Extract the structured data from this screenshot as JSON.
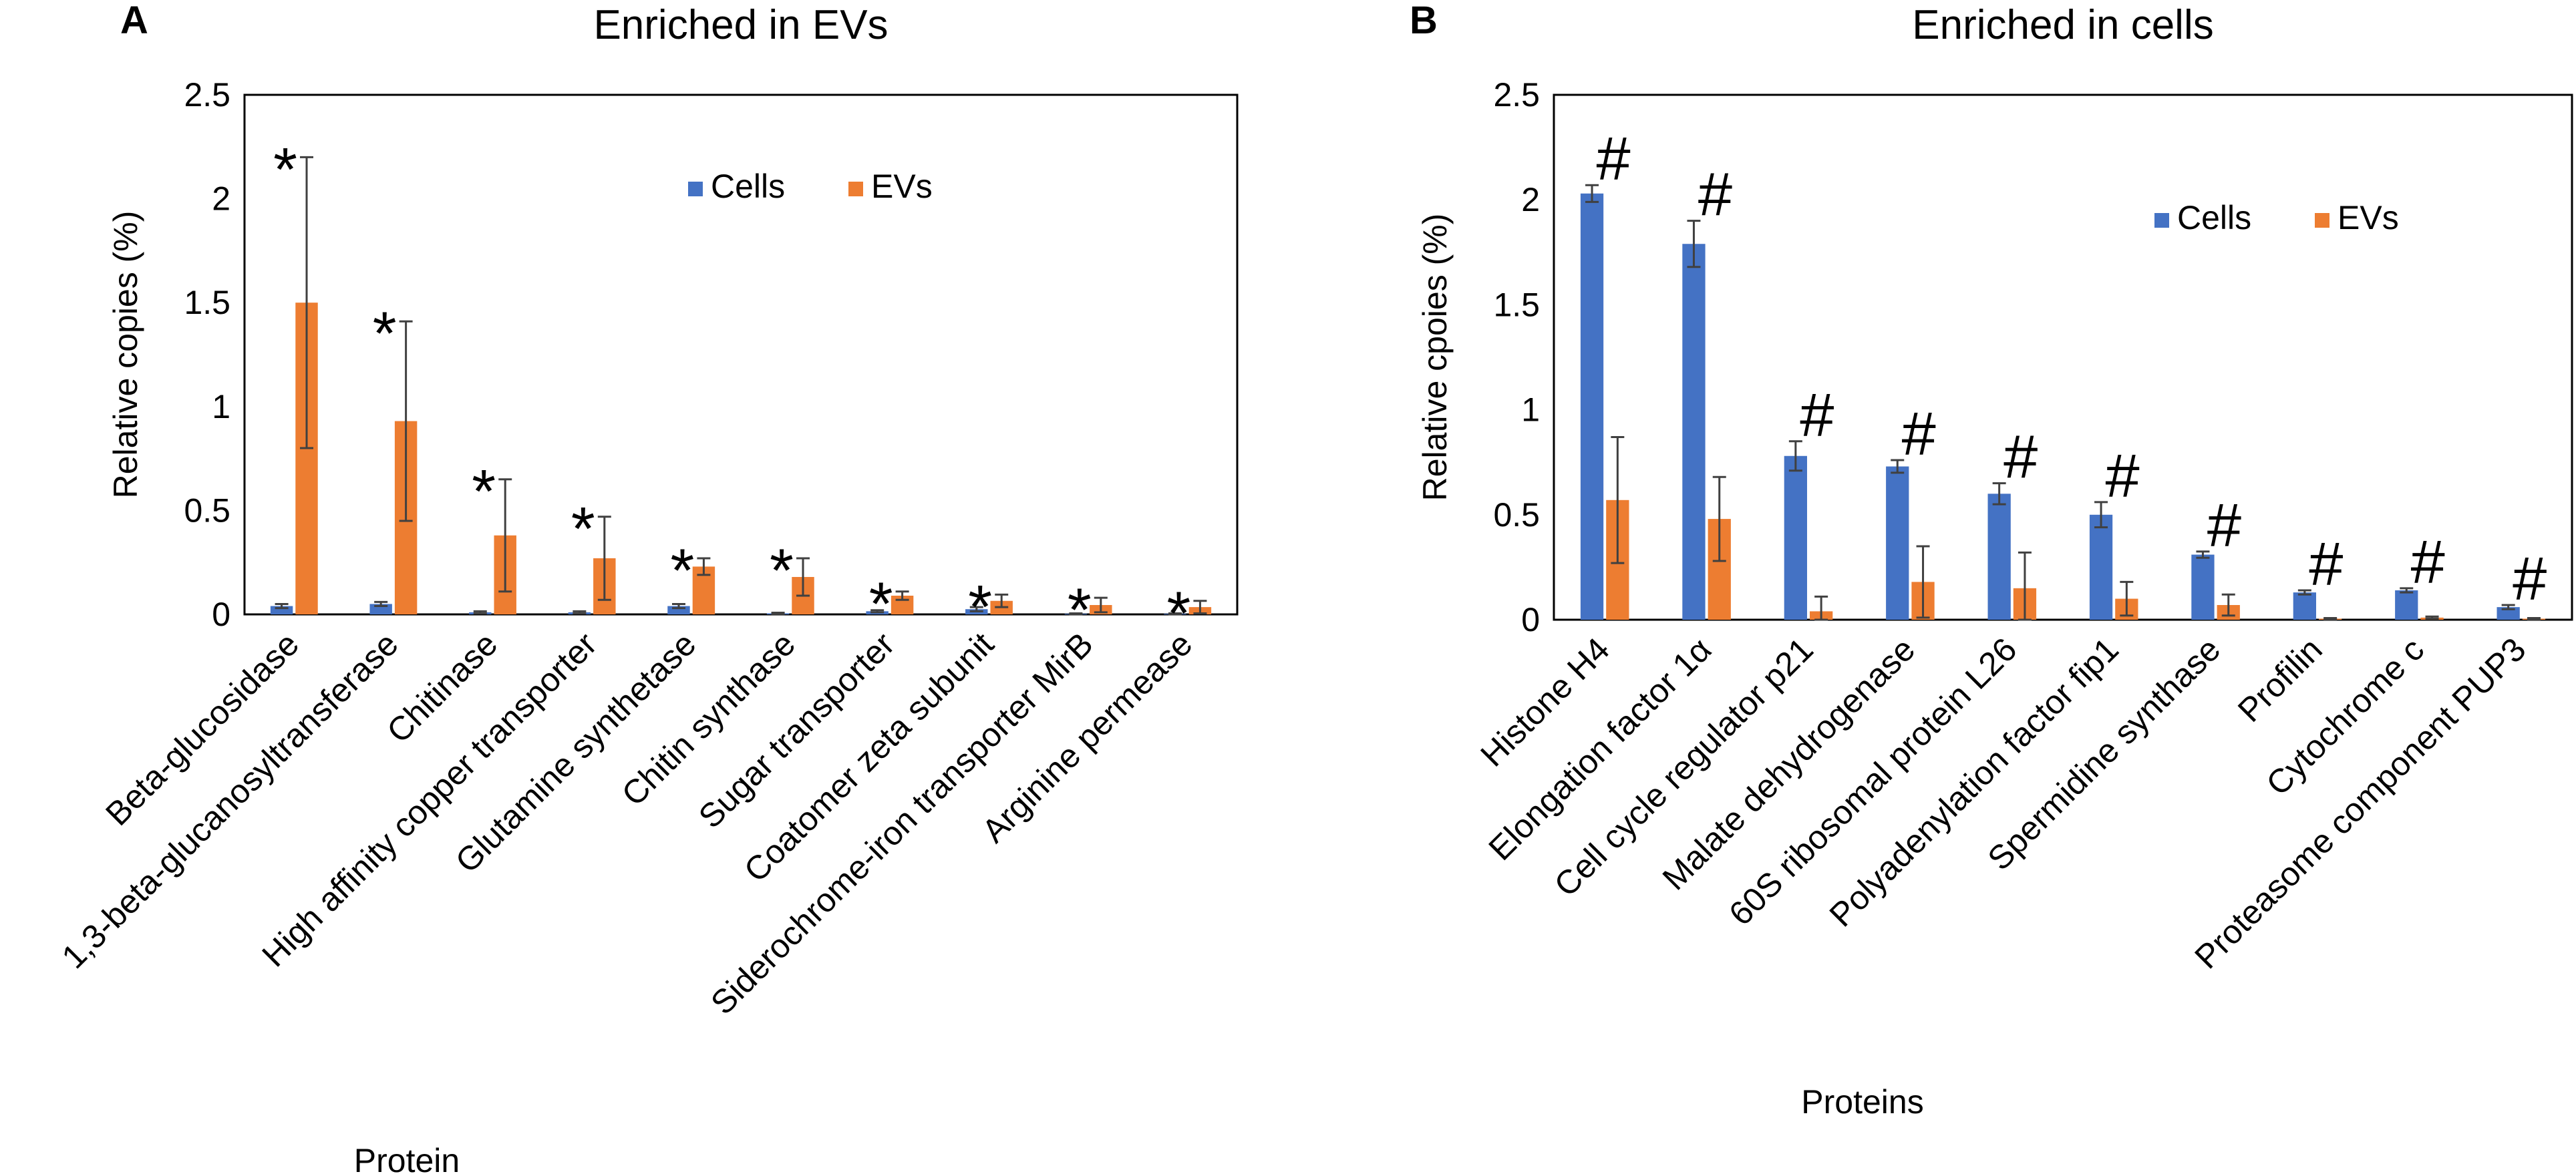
{
  "colors": {
    "cells": "#4472C4",
    "evs": "#ED7D31",
    "errorbar": "#404040",
    "axis": "#000000"
  },
  "chart_data": [
    {
      "panel": "A",
      "type": "bar",
      "title": "Enriched in EVs",
      "xlabel": "Protein",
      "ylabel": "Relative copies (%)",
      "ylim": [
        0,
        2.5
      ],
      "yticks": [
        "0",
        "0.5",
        "1",
        "1.5",
        "2",
        "2.5"
      ],
      "grid": false,
      "legend": {
        "position": "top-right",
        "entries": [
          "Cells",
          "EVs"
        ]
      },
      "marker": "*",
      "categories": [
        "Beta-glucosidase",
        "1,3-beta-glucanosyltransferase",
        "Chitinase",
        "High affinity copper transporter",
        "Glutamine synthetase",
        "Chitin synthase",
        "Sugar transporter",
        "Coatomer zeta subunit",
        "Siderochrome-iron transporter MirB",
        "Arginine permease"
      ],
      "series": [
        {
          "name": "Cells",
          "values": [
            0.04,
            0.05,
            0.01,
            0.01,
            0.04,
            0.005,
            0.015,
            0.025,
            0.003,
            0.003
          ],
          "errors": [
            0.01,
            0.01,
            0.005,
            0.005,
            0.01,
            0.003,
            0.005,
            0.01,
            0.002,
            0.002
          ]
        },
        {
          "name": "EVs",
          "values": [
            1.5,
            0.93,
            0.38,
            0.27,
            0.23,
            0.18,
            0.09,
            0.065,
            0.045,
            0.035
          ],
          "errors": [
            0.7,
            0.48,
            0.27,
            0.2,
            0.04,
            0.09,
            0.02,
            0.03,
            0.035,
            0.03
          ]
        }
      ]
    },
    {
      "panel": "B",
      "type": "bar",
      "title": "Enriched in cells",
      "xlabel": "Proteins",
      "ylabel": "Relative cpoies (%)",
      "ylim": [
        0,
        2.5
      ],
      "yticks": [
        "0",
        "0.5",
        "1",
        "1.5",
        "2",
        "2.5"
      ],
      "grid": false,
      "legend": {
        "position": "top-right",
        "entries": [
          "Cells",
          "EVs"
        ]
      },
      "marker": "#",
      "categories": [
        "Histone H4",
        "Elongation factor 1α",
        "Cell cycle regulator p21",
        "Malate dehydrogenase",
        "60S ribosomal protein L26",
        "Polyadenylation factor fip1",
        "Spermidine synthase",
        "Profilin",
        "Cytochrome c",
        "Proteasome component PUP3"
      ],
      "series": [
        {
          "name": "Cells",
          "values": [
            2.03,
            1.79,
            0.78,
            0.73,
            0.6,
            0.5,
            0.31,
            0.13,
            0.14,
            0.06
          ],
          "errors": [
            0.04,
            0.11,
            0.07,
            0.03,
            0.05,
            0.06,
            0.015,
            0.01,
            0.01,
            0.01
          ]
        },
        {
          "name": "EVs",
          "values": [
            0.57,
            0.48,
            0.04,
            0.18,
            0.15,
            0.1,
            0.07,
            0.005,
            0.01,
            0.005
          ],
          "errors": [
            0.3,
            0.2,
            0.07,
            0.17,
            0.17,
            0.08,
            0.05,
            0.003,
            0.005,
            0.003
          ]
        }
      ]
    }
  ]
}
